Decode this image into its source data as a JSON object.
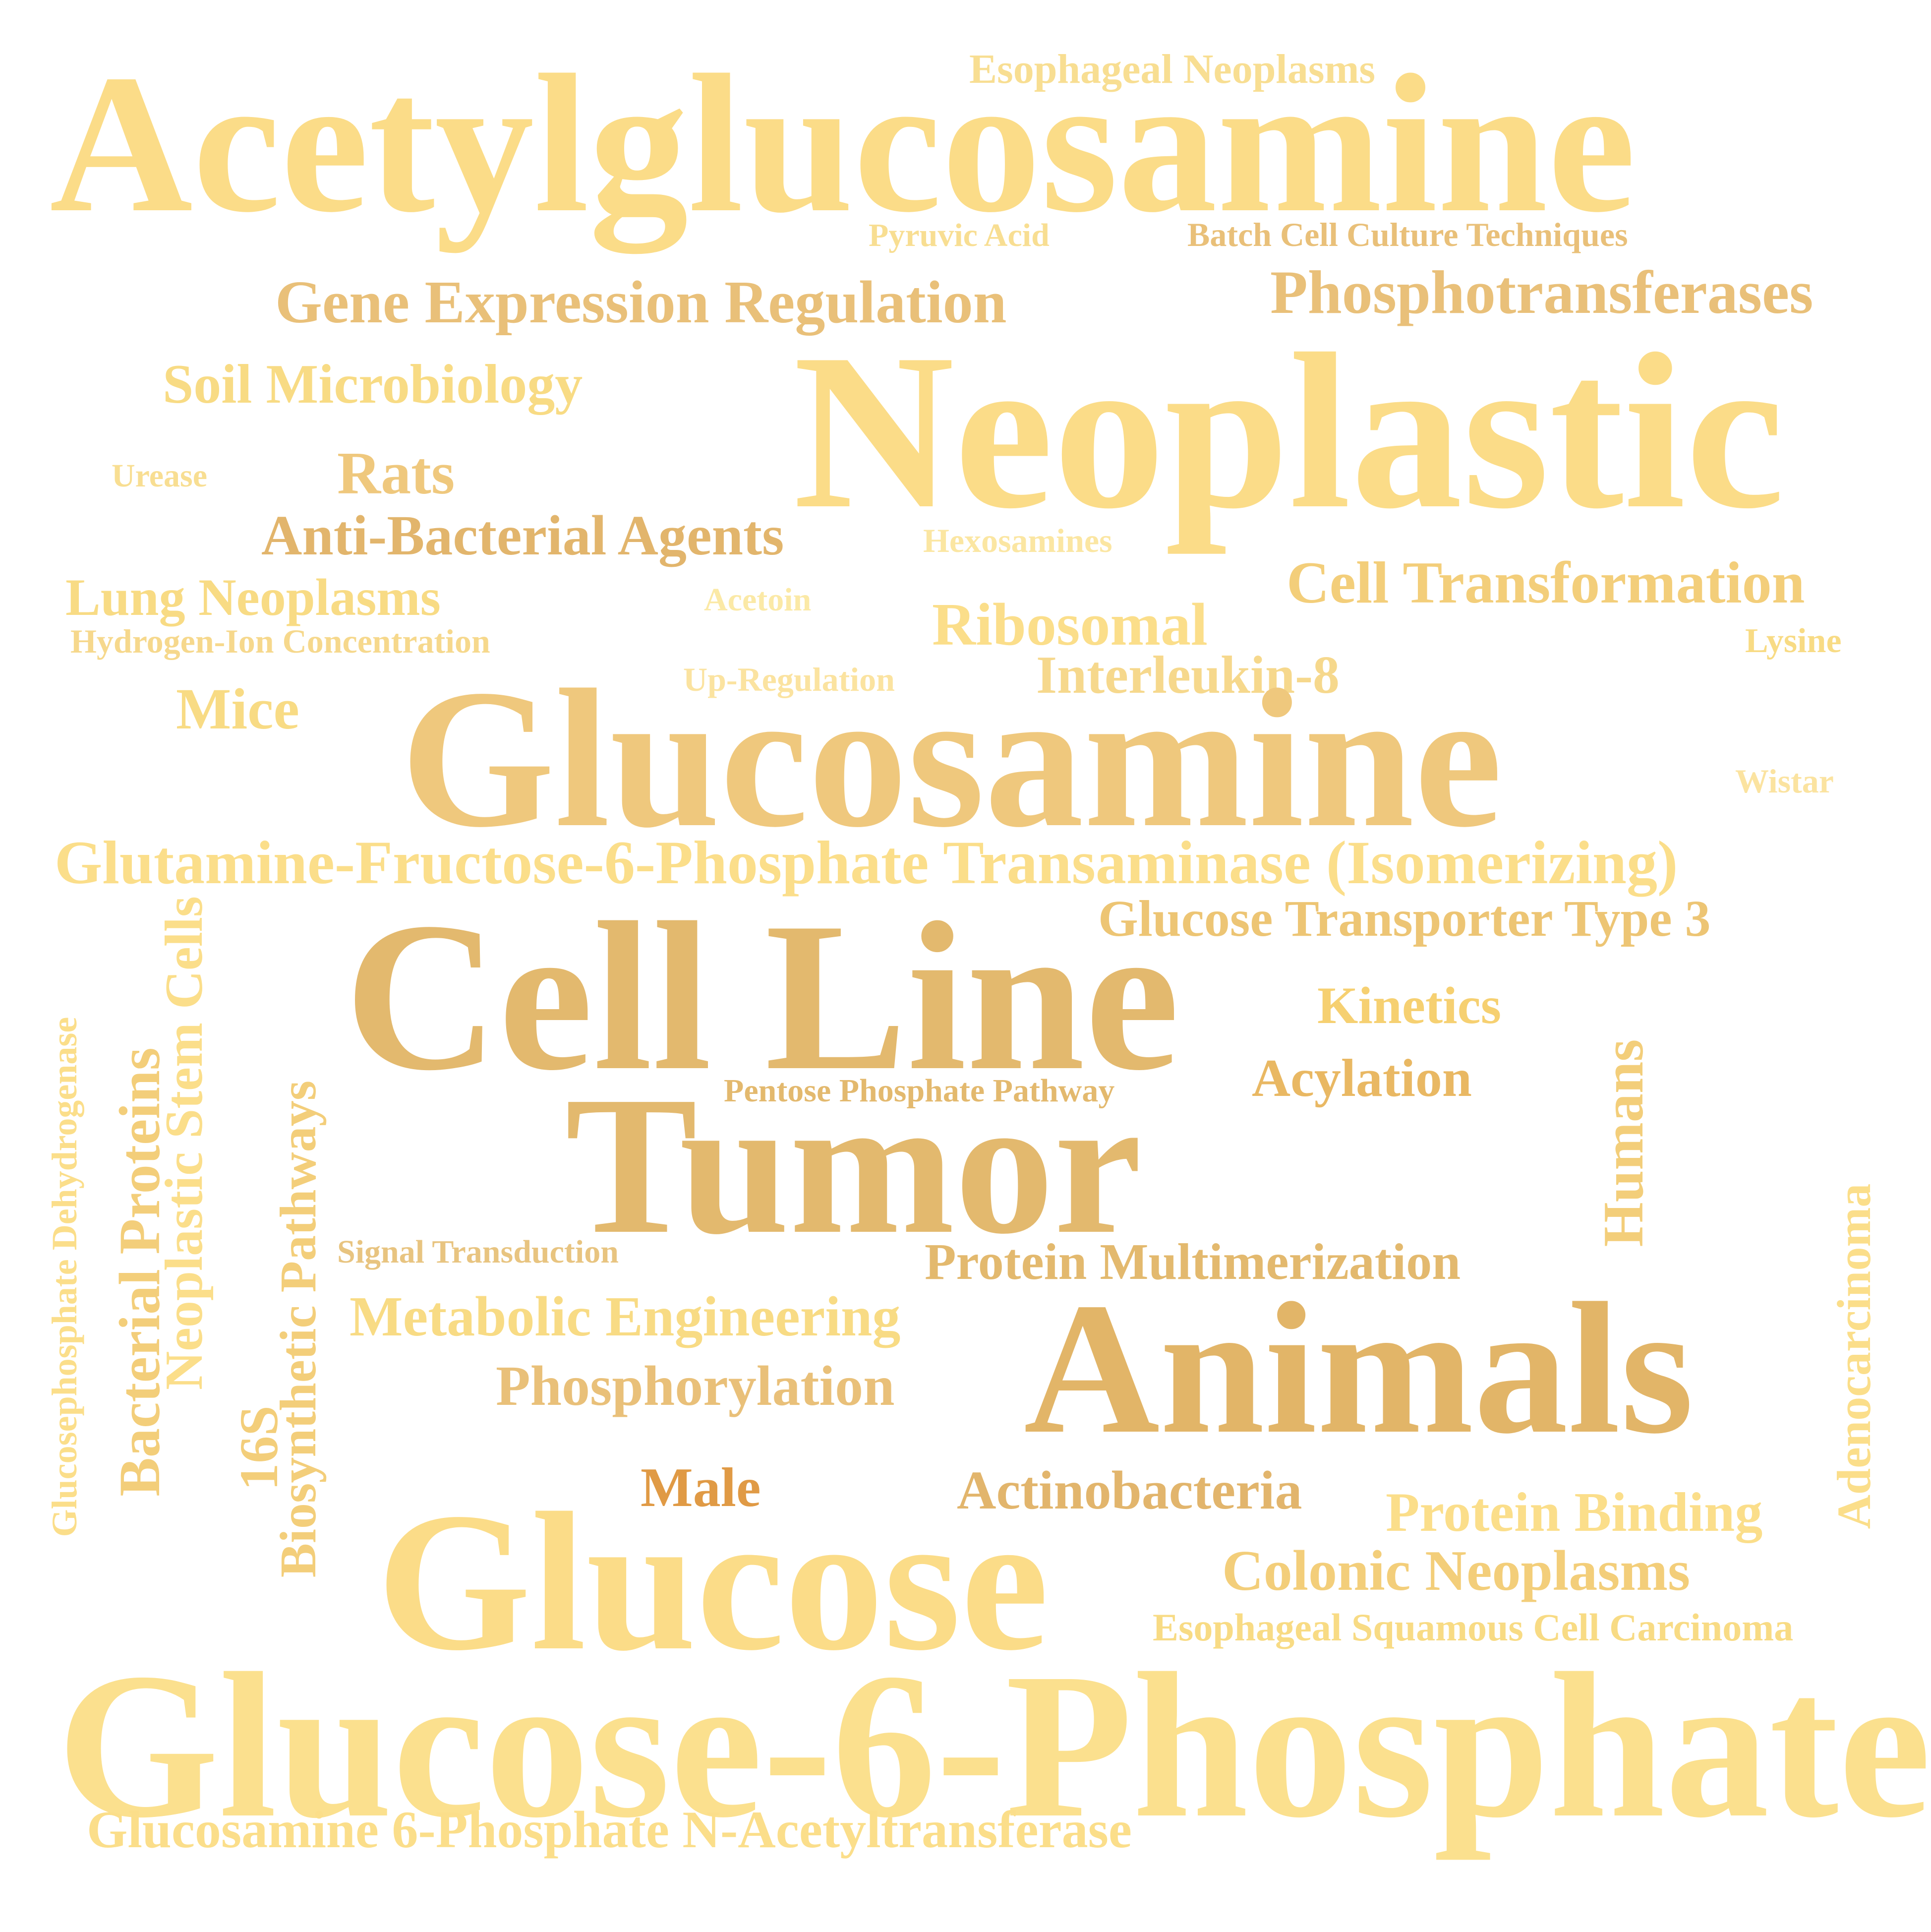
{
  "words": {
    "esophageal_neoplasms": "Esophageal Neoplasms",
    "acetylglucosamine": "Acetylglucosamine",
    "pyruvic_acid": "Pyruvic Acid",
    "batch_cell_culture": "Batch Cell Culture Techniques",
    "gene_expression_regulation": "Gene Expression Regulation",
    "phosphotransferases": "Phosphotransferases",
    "soil_microbiology": "Soil Microbiology",
    "neoplastic": "Neoplastic",
    "urease": "Urease",
    "rats": "Rats",
    "anti_bacterial_agents": "Anti-Bacterial Agents",
    "hexosamines": "Hexosamines",
    "cell_transformation": "Cell Transformation",
    "lung_neoplasms": "Lung Neoplasms",
    "acetoin": "Acetoin",
    "ribosomal": "Ribosomal",
    "hydrogen_ion": "Hydrogen-Ion Concentration",
    "lysine": "Lysine",
    "up_regulation": "Up-Regulation",
    "interleukin_8": "Interleukin-8",
    "mice": "Mice",
    "glucosamine": "Glucosamine",
    "wistar": "Wistar",
    "gfpt": "Glutamine-Fructose-6-Phosphate Transaminase (Isomerizing)",
    "glut3": "Glucose Transporter Type 3",
    "cell_line": "Cell Line",
    "kinetics": "Kinetics",
    "acylation": "Acylation",
    "pentose_phosphate": "Pentose Phosphate Pathway",
    "tumor": "Tumor",
    "signal_transduction": "Signal Transduction",
    "protein_multimerization": "Protein Multimerization",
    "metabolic_engineering": "Metabolic Engineering",
    "animals": "Animals",
    "phosphorylation": "Phosphorylation",
    "male": "Male",
    "actinobacteria": "Actinobacteria",
    "protein_binding": "Protein Binding",
    "glucose": "Glucose",
    "colonic_neoplasms": "Colonic Neoplasms",
    "escc": "Esophageal Squamous Cell Carcinoma",
    "glucose_6_phosphate": "Glucose-6-Phosphate",
    "gnat": "Glucosamine 6-Phosphate N-Acetyltransferase",
    "humans": "Humans",
    "adenocarcinoma": "Adenocarcinoma",
    "glucosephosphate_dh": "Glucosephosphate Dehydrogenase",
    "bacterial_proteins": "Bacterial Proteins",
    "neoplastic_stem_cells": "Neoplastic Stem Cells",
    "16s": "16S",
    "biosynthetic_pathways": "Biosynthetic Pathways"
  },
  "colors": {
    "light_yellow": "#FBE9A6",
    "yellow": "#FBDE8A",
    "gold": "#F3CE7A",
    "tan": "#E8BF72",
    "deep_tan": "#E0B468",
    "orange": "#E09A45"
  }
}
